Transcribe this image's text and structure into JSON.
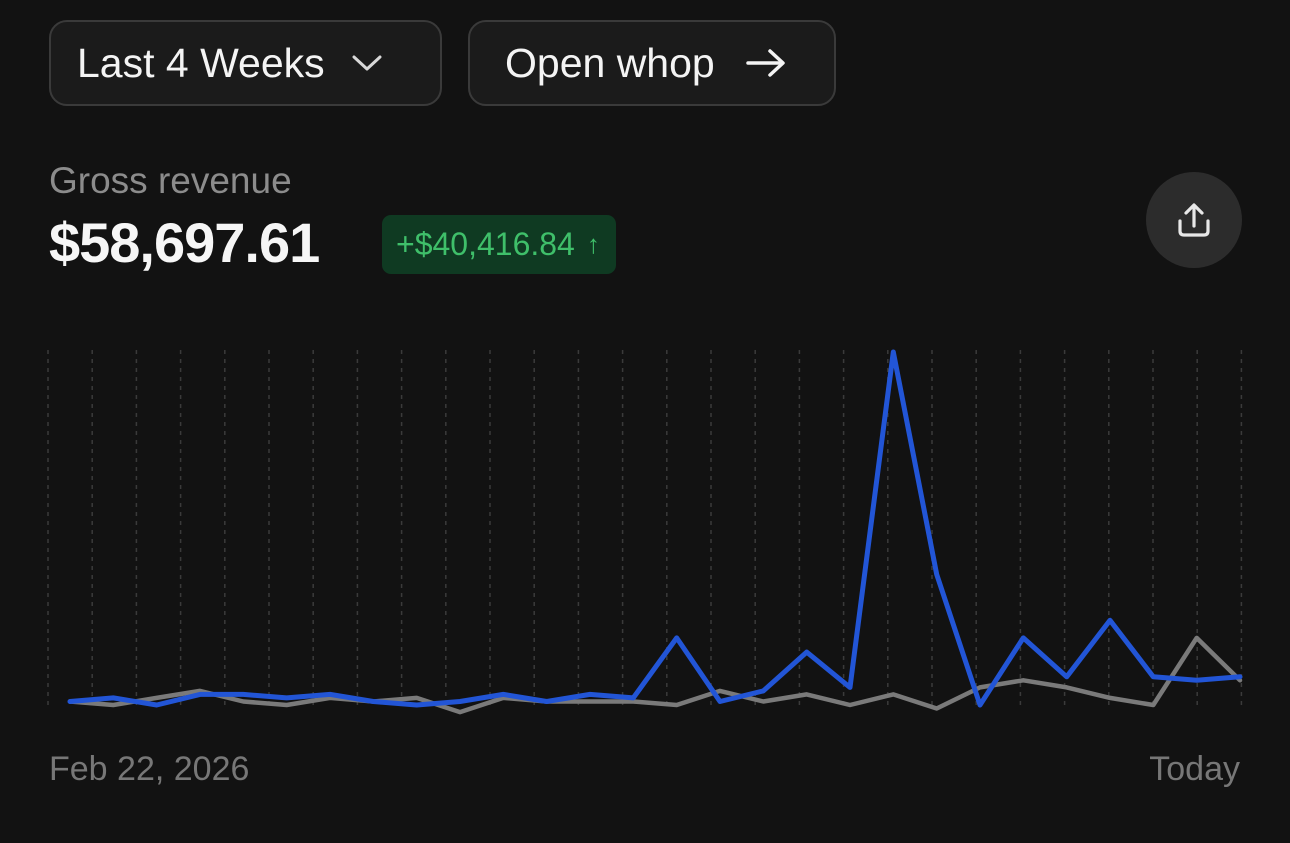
{
  "toolbar": {
    "range_label": "Last 4 Weeks",
    "range_icon": "chevron-down-icon",
    "open_label": "Open whop",
    "open_icon": "arrow-right-icon"
  },
  "metric": {
    "label": "Gross revenue",
    "value": "$58,697.61",
    "delta": "+$40,416.84",
    "delta_arrow": "↑",
    "delta_color": "#3fbf6a",
    "share_icon": "share-icon"
  },
  "chart_data": {
    "type": "line",
    "title": "",
    "xlabel": "",
    "ylabel": "",
    "grid": "vertical dashed",
    "x_tick_labels": [
      "Feb 22, 2026",
      "Today"
    ],
    "ylim": [
      0,
      100
    ],
    "series": [
      {
        "color": "#2255d6",
        "values": [
          1,
          2,
          0,
          3,
          3,
          2,
          3,
          1,
          0,
          1,
          3,
          1,
          3,
          2,
          19,
          1,
          4,
          15,
          5,
          100,
          37,
          0,
          19,
          8,
          24,
          8,
          7,
          8
        ]
      },
      {
        "color": "#7a7a7a",
        "values": [
          1,
          0,
          2,
          4,
          1,
          0,
          2,
          1,
          2,
          -2,
          2,
          1,
          1,
          1,
          0,
          4,
          1,
          3,
          0,
          3,
          -1,
          5,
          7,
          5,
          2,
          0,
          19,
          7
        ]
      }
    ]
  }
}
